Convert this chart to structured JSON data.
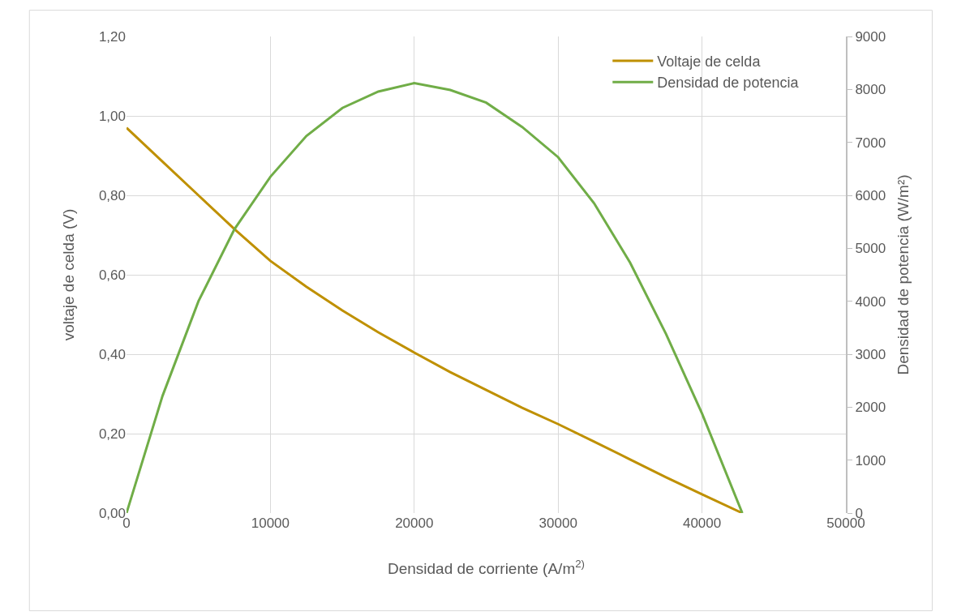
{
  "chart_data": {
    "type": "line",
    "xlabel": "Densidad de corriente (A/m$^{2)}$",
    "ylabel": "voltaje de celda (V)",
    "y2label": "Densidad de potencia (W/m²)",
    "x": [
      0,
      2500,
      5000,
      7500,
      10000,
      12500,
      15000,
      17500,
      20000,
      22500,
      25000,
      27500,
      30000,
      32500,
      35000,
      37500,
      40000,
      42800
    ],
    "series": [
      {
        "name": "Voltaje de celda",
        "color": "#bf9000",
        "values": [
          0.97,
          0.885,
          0.8,
          0.715,
          0.635,
          0.57,
          0.51,
          0.455,
          0.404,
          0.355,
          0.31,
          0.265,
          0.224,
          0.18,
          0.135,
          0.09,
          0.047,
          0
        ]
      },
      {
        "name": "Densidad de potencia",
        "color": "#70ad47",
        "axis": "y2",
        "values": [
          0,
          2210,
          4000,
          5360,
          6350,
          7120,
          7650,
          7960,
          8120,
          7990,
          7750,
          7290,
          6720,
          5850,
          4730,
          3380,
          1880,
          0
        ]
      }
    ],
    "xlim": [
      0,
      50000
    ],
    "xticks": [
      0,
      10000,
      20000,
      30000,
      40000,
      50000
    ],
    "ylim": [
      0,
      1.2
    ],
    "yticks": [
      {
        "value": 0,
        "label": "0,00"
      },
      {
        "value": 0.2,
        "label": "0,20"
      },
      {
        "value": 0.4,
        "label": "0,40"
      },
      {
        "value": 0.6,
        "label": "0,60"
      },
      {
        "value": 0.8,
        "label": "0,80"
      },
      {
        "value": 1,
        "label": "1,00"
      },
      {
        "value": 1.2,
        "label": "1,20"
      }
    ],
    "y2lim": [
      0,
      9000
    ],
    "y2ticks": [
      0,
      1000,
      2000,
      3000,
      4000,
      5000,
      6000,
      7000,
      8000,
      9000
    ],
    "grid": true,
    "legend": "top right",
    "marker": "none",
    "line_style": "solid"
  }
}
